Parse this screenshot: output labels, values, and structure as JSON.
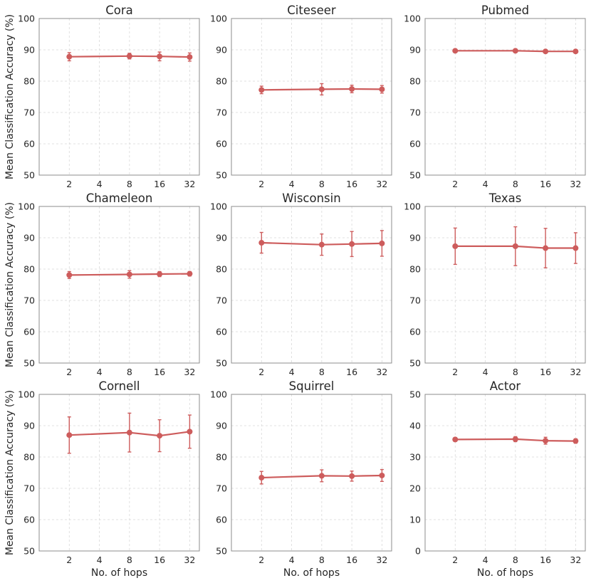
{
  "figure": {
    "ylabel": "Mean Classification Accuracy (%)",
    "xlabel": "No. of hops",
    "series_color": "#cd5c5c"
  },
  "chart_data": [
    {
      "type": "line",
      "title": "Cora",
      "x": [
        2,
        8,
        16,
        32
      ],
      "xticks": [
        2,
        4,
        8,
        16,
        32
      ],
      "xlim": [
        1,
        40
      ],
      "ylim": [
        50,
        100
      ],
      "yticks": [
        50,
        60,
        70,
        80,
        90,
        100
      ],
      "series": [
        {
          "name": "accuracy",
          "values": [
            87.8,
            88.0,
            87.9,
            87.7
          ],
          "errors": [
            1.3,
            0.9,
            1.4,
            1.3
          ]
        }
      ]
    },
    {
      "type": "line",
      "title": "Citeseer",
      "x": [
        2,
        8,
        16,
        32
      ],
      "xticks": [
        2,
        4,
        8,
        16,
        32
      ],
      "xlim": [
        1,
        40
      ],
      "ylim": [
        50,
        100
      ],
      "yticks": [
        50,
        60,
        70,
        80,
        90,
        100
      ],
      "series": [
        {
          "name": "accuracy",
          "values": [
            77.2,
            77.4,
            77.5,
            77.4
          ],
          "errors": [
            1.2,
            1.8,
            1.2,
            1.2
          ]
        }
      ]
    },
    {
      "type": "line",
      "title": "Pubmed",
      "x": [
        2,
        8,
        16,
        32
      ],
      "xticks": [
        2,
        4,
        8,
        16,
        32
      ],
      "xlim": [
        1,
        40
      ],
      "ylim": [
        50,
        100
      ],
      "yticks": [
        50,
        60,
        70,
        80,
        90,
        100
      ],
      "series": [
        {
          "name": "accuracy",
          "values": [
            89.7,
            89.7,
            89.5,
            89.5
          ],
          "errors": [
            0.4,
            0.4,
            0.4,
            0.4
          ]
        }
      ]
    },
    {
      "type": "line",
      "title": "Chameleon",
      "x": [
        2,
        8,
        16,
        32
      ],
      "xticks": [
        2,
        4,
        8,
        16,
        32
      ],
      "xlim": [
        1,
        40
      ],
      "ylim": [
        50,
        100
      ],
      "yticks": [
        50,
        60,
        70,
        80,
        90,
        100
      ],
      "series": [
        {
          "name": "accuracy",
          "values": [
            78.1,
            78.3,
            78.4,
            78.5
          ],
          "errors": [
            1.1,
            1.2,
            0.8,
            0.7
          ]
        }
      ]
    },
    {
      "type": "line",
      "title": "Wisconsin",
      "x": [
        2,
        8,
        16,
        32
      ],
      "xticks": [
        2,
        4,
        8,
        16,
        32
      ],
      "xlim": [
        1,
        40
      ],
      "ylim": [
        50,
        100
      ],
      "yticks": [
        50,
        60,
        70,
        80,
        90,
        100
      ],
      "series": [
        {
          "name": "accuracy",
          "values": [
            88.4,
            87.8,
            88.0,
            88.2
          ],
          "errors": [
            3.3,
            3.4,
            4.0,
            4.1
          ]
        }
      ]
    },
    {
      "type": "line",
      "title": "Texas",
      "x": [
        2,
        8,
        16,
        32
      ],
      "xticks": [
        2,
        4,
        8,
        16,
        32
      ],
      "xlim": [
        1,
        40
      ],
      "ylim": [
        50,
        100
      ],
      "yticks": [
        50,
        60,
        70,
        80,
        90,
        100
      ],
      "series": [
        {
          "name": "accuracy",
          "values": [
            87.3,
            87.3,
            86.7,
            86.7
          ],
          "errors": [
            5.8,
            6.2,
            6.3,
            4.9
          ]
        }
      ]
    },
    {
      "type": "line",
      "title": "Cornell",
      "x": [
        2,
        8,
        16,
        32
      ],
      "xticks": [
        2,
        4,
        8,
        16,
        32
      ],
      "xlim": [
        1,
        40
      ],
      "ylim": [
        50,
        100
      ],
      "yticks": [
        50,
        60,
        70,
        80,
        90,
        100
      ],
      "series": [
        {
          "name": "accuracy",
          "values": [
            87.0,
            87.8,
            86.8,
            88.1
          ],
          "errors": [
            5.8,
            6.2,
            5.1,
            5.3
          ]
        }
      ]
    },
    {
      "type": "line",
      "title": "Squirrel",
      "x": [
        2,
        8,
        16,
        32
      ],
      "xticks": [
        2,
        4,
        8,
        16,
        32
      ],
      "xlim": [
        1,
        40
      ],
      "ylim": [
        50,
        100
      ],
      "yticks": [
        50,
        60,
        70,
        80,
        90,
        100
      ],
      "series": [
        {
          "name": "accuracy",
          "values": [
            73.4,
            74.0,
            73.9,
            74.1
          ],
          "errors": [
            2.0,
            1.9,
            1.6,
            1.9
          ]
        }
      ]
    },
    {
      "type": "line",
      "title": "Actor",
      "x": [
        2,
        8,
        16,
        32
      ],
      "xticks": [
        2,
        4,
        8,
        16,
        32
      ],
      "xlim": [
        1,
        40
      ],
      "ylim": [
        0,
        50
      ],
      "yticks": [
        0,
        10,
        20,
        30,
        40,
        50
      ],
      "series": [
        {
          "name": "accuracy",
          "values": [
            35.6,
            35.7,
            35.2,
            35.1
          ],
          "errors": [
            0.6,
            0.8,
            1.1,
            0.7
          ]
        }
      ]
    }
  ]
}
